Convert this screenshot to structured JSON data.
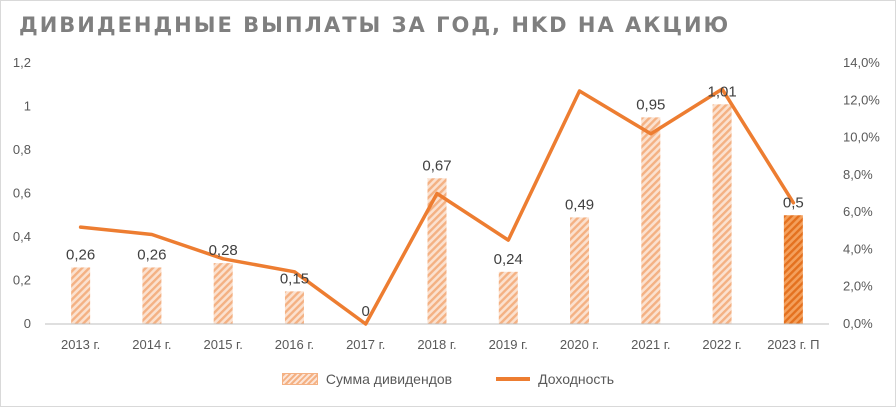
{
  "chart_data": {
    "type": "bar",
    "title": "ДИВИДЕНДНЫЕ ВЫПЛАТЫ ЗА ГОД, HKD НА АКЦИЮ",
    "categories": [
      "2013 г.",
      "2014 г.",
      "2015 г.",
      "2016 г.",
      "2017 г.",
      "2018 г.",
      "2019 г.",
      "2020 г.",
      "2021 г.",
      "2022 г.",
      "2023 г. П"
    ],
    "series": [
      {
        "name": "Сумма дивидендов",
        "type": "bar",
        "axis": "left",
        "values": [
          0.26,
          0.26,
          0.28,
          0.15,
          0,
          0.67,
          0.24,
          0.49,
          0.95,
          1.01,
          0.5
        ],
        "labels": [
          "0,26",
          "0,26",
          "0,28",
          "0,15",
          "0",
          "0,67",
          "0,24",
          "0,49",
          "0,95",
          "1,01",
          "0,5"
        ],
        "highlight_index": 10
      },
      {
        "name": "Доходность",
        "type": "line",
        "axis": "right",
        "values": [
          5.2,
          4.8,
          3.5,
          2.8,
          0.0,
          7.0,
          4.5,
          12.5,
          10.2,
          12.6,
          6.5
        ]
      }
    ],
    "left_axis": {
      "min": 0,
      "max": 1.2,
      "ticks": [
        "0",
        "0,2",
        "0,4",
        "0,6",
        "0,8",
        "1",
        "1,2"
      ]
    },
    "right_axis": {
      "min": 0,
      "max": 14,
      "ticks": [
        "0,0%",
        "2,0%",
        "4,0%",
        "6,0%",
        "8,0%",
        "10,0%",
        "12,0%",
        "14,0%"
      ]
    },
    "grid": false,
    "legend_position": "bottom",
    "colors": {
      "bar": "#f4b183",
      "bar_highlight": "#ed7d31",
      "line": "#ed7d31",
      "text": "#595959",
      "title": "#7f7f7f"
    }
  }
}
